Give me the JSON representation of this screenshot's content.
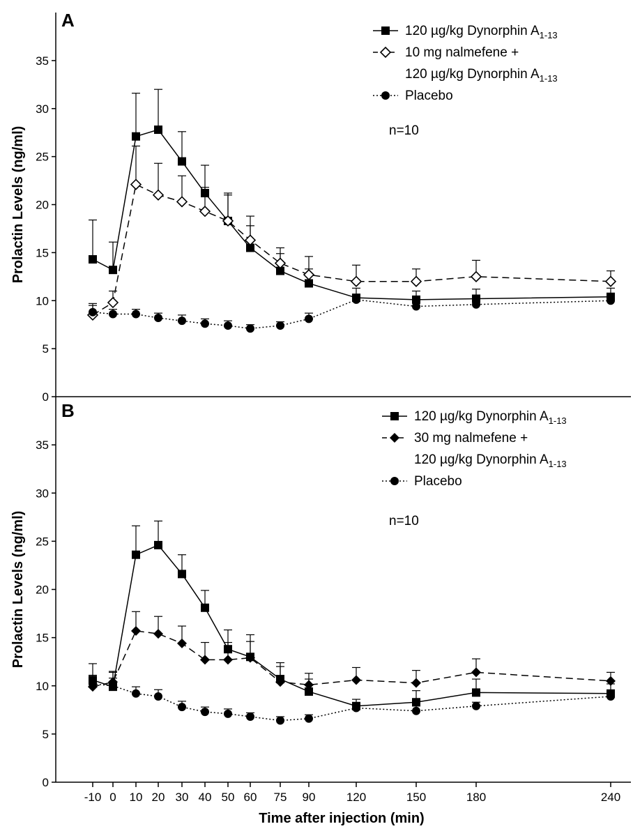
{
  "figure": {
    "xlabel": "Time after injection (min)",
    "ylabel": "Prolactin Levels (ng/ml)"
  },
  "chart_data": [
    {
      "type": "line",
      "panel": "A",
      "annotation": "n=10",
      "ylabel": "Prolactin Levels (ng/ml)",
      "xlabel": "Time after injection (min)",
      "x": [
        -10,
        0,
        10,
        20,
        30,
        40,
        50,
        60,
        75,
        90,
        120,
        150,
        180,
        240
      ],
      "x_ticks": [
        "-10",
        "0",
        "10",
        "20",
        "30",
        "40",
        "50",
        "60",
        "75",
        "90",
        "120",
        "150",
        "180",
        "240"
      ],
      "y_ticks": [
        "0",
        "5",
        "10",
        "15",
        "20",
        "25",
        "30",
        "35"
      ],
      "ylim": [
        0,
        40
      ],
      "legend_position": "top-right",
      "series": [
        {
          "legend_main": "120 µg/kg Dynorphin A",
          "legend_sub": "1-13",
          "values": [
            14.3,
            13.2,
            27.1,
            27.8,
            24.5,
            21.2,
            18.3,
            15.5,
            13.1,
            11.8,
            10.3,
            10.1,
            10.2,
            10.4
          ],
          "errors": [
            4.1,
            2.9,
            4.5,
            4.2,
            3.1,
            2.9,
            2.9,
            2.3,
            1.8,
            1.5,
            1.0,
            0.9,
            1.0,
            0.9
          ],
          "marker": "square-filled",
          "dash": "solid"
        },
        {
          "legend_main": "10 mg nalmefene +",
          "legend_line2_main": "120 µg/kg Dynorphin A",
          "legend_sub": "1-13",
          "values": [
            8.5,
            9.8,
            22.1,
            21.0,
            20.3,
            19.3,
            18.3,
            16.3,
            13.9,
            12.7,
            12.0,
            12.0,
            12.5,
            12.0
          ],
          "errors": [
            1.0,
            1.2,
            4.0,
            3.3,
            2.7,
            2.5,
            2.7,
            2.5,
            1.6,
            1.9,
            1.7,
            1.3,
            1.7,
            1.1
          ],
          "marker": "diamond-open",
          "dash": "dashed"
        },
        {
          "legend_main": "Placebo",
          "values": [
            8.8,
            8.6,
            8.6,
            8.2,
            7.9,
            7.6,
            7.4,
            7.1,
            7.4,
            8.1,
            10.1,
            9.4,
            9.6,
            10.0
          ],
          "errors": [
            0.9,
            0.5,
            0.5,
            0.5,
            0.6,
            0.5,
            0.5,
            0.4,
            0.4,
            0.6,
            0.4,
            0.5,
            0.5,
            0.5
          ],
          "marker": "circle-filled",
          "dash": "dotted"
        }
      ]
    },
    {
      "type": "line",
      "panel": "B",
      "annotation": "n=10",
      "ylabel": "Prolactin Levels (ng/ml)",
      "xlabel": "Time after injection (min)",
      "x": [
        -10,
        0,
        10,
        20,
        30,
        40,
        50,
        60,
        75,
        90,
        120,
        150,
        180,
        240
      ],
      "x_ticks": [
        "-10",
        "0",
        "10",
        "20",
        "30",
        "40",
        "50",
        "60",
        "75",
        "90",
        "120",
        "150",
        "180",
        "240"
      ],
      "y_ticks": [
        "0",
        "5",
        "10",
        "15",
        "20",
        "25",
        "30",
        "35"
      ],
      "ylim": [
        0,
        40
      ],
      "legend_position": "top-right",
      "series": [
        {
          "legend_main": "120 µg/kg Dynorphin A",
          "legend_sub": "1-13",
          "values": [
            10.6,
            9.9,
            23.6,
            24.6,
            21.6,
            18.1,
            13.8,
            13.0,
            10.7,
            9.4,
            7.9,
            8.3,
            9.3,
            9.2
          ],
          "errors": [
            1.7,
            1.5,
            3.0,
            2.5,
            2.0,
            1.8,
            2.0,
            2.3,
            1.7,
            1.3,
            0.7,
            1.2,
            1.4,
            1.0
          ],
          "marker": "square-filled",
          "dash": "solid"
        },
        {
          "legend_main": "30 mg nalmefene +",
          "legend_line2_main": "120 µg/kg Dynorphin A",
          "legend_sub": "1-13",
          "values": [
            9.9,
            10.4,
            15.7,
            15.4,
            14.4,
            12.7,
            12.7,
            12.9,
            10.4,
            10.1,
            10.6,
            10.3,
            11.4,
            10.5
          ],
          "errors": [
            1.2,
            1.1,
            2.0,
            1.8,
            1.8,
            1.8,
            1.8,
            1.7,
            1.6,
            1.2,
            1.3,
            1.3,
            1.4,
            0.9
          ],
          "marker": "diamond-filled",
          "dash": "dashed"
        },
        {
          "legend_main": "Placebo",
          "values": [
            10.2,
            10.0,
            9.2,
            8.9,
            7.8,
            7.3,
            7.1,
            6.8,
            6.4,
            6.6,
            7.7,
            7.4,
            7.9,
            8.9
          ],
          "errors": [
            0.8,
            0.8,
            0.7,
            0.7,
            0.6,
            0.5,
            0.5,
            0.4,
            0.4,
            0.4,
            0.5,
            0.5,
            0.4,
            0.5
          ],
          "marker": "circle-filled",
          "dash": "dotted"
        }
      ]
    }
  ]
}
